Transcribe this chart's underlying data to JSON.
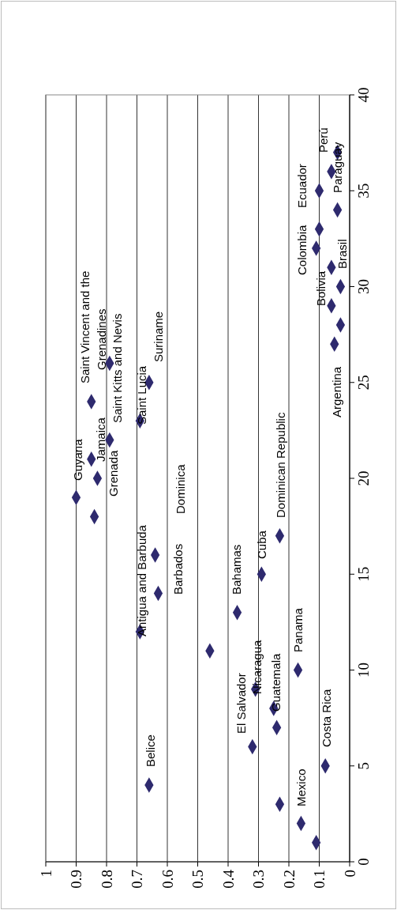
{
  "chart_data": {
    "type": "scatter",
    "color": "#2e2a6e",
    "marker": "diamond",
    "grid": "x",
    "x": [
      0.11,
      0.16,
      0.23,
      0.66,
      0.08,
      0.32,
      0.24,
      0.25,
      0.31,
      0.17,
      0.46,
      0.69,
      0.37,
      0.63,
      0.29,
      0.64,
      0.23,
      0.84,
      0.9,
      0.83,
      0.85,
      0.79,
      0.69,
      0.85,
      0.66,
      0.79,
      0.05,
      0.03,
      0.06,
      0.03,
      0.06,
      0.11,
      0.1,
      0.04,
      0.1,
      0.06,
      0.04
    ],
    "values": [
      1,
      2,
      3,
      4,
      5,
      6,
      7,
      8,
      9,
      10,
      11,
      12,
      13,
      14,
      15,
      16,
      17,
      18,
      19,
      20,
      21,
      22,
      23,
      24,
      25,
      26,
      27,
      28,
      29,
      30,
      31,
      32,
      33,
      34,
      35,
      36,
      37
    ],
    "ylim": [
      0,
      40
    ],
    "yticks": [
      0,
      5,
      10,
      15,
      20,
      25,
      30,
      35,
      40
    ],
    "xlim": [
      1,
      0
    ],
    "xticks": [
      1,
      0.9,
      0.8,
      0.7,
      0.6,
      0.5,
      0.4,
      0.3,
      0.2,
      0.1,
      0
    ],
    "annotations": [
      "Mexico",
      "Costa Rica",
      "Belice",
      "El Salvador",
      "Guatemala",
      "Nicaragua",
      "Panama",
      "Bahamas",
      "Antigua and Barbuda",
      "Barbados",
      "Cuba",
      "Dominican Republic",
      "Dominica",
      "Grenada",
      "Guyana",
      "Jamaica",
      "Saint Vincent and the",
      "Grenadines",
      "Saint Kitts and Nevis",
      "Saint Lucia",
      "Suriname",
      "Argentina",
      "Bolivia",
      "Brasil",
      "Colombia",
      "Ecuador",
      "Paraguay",
      "Perú"
    ]
  }
}
